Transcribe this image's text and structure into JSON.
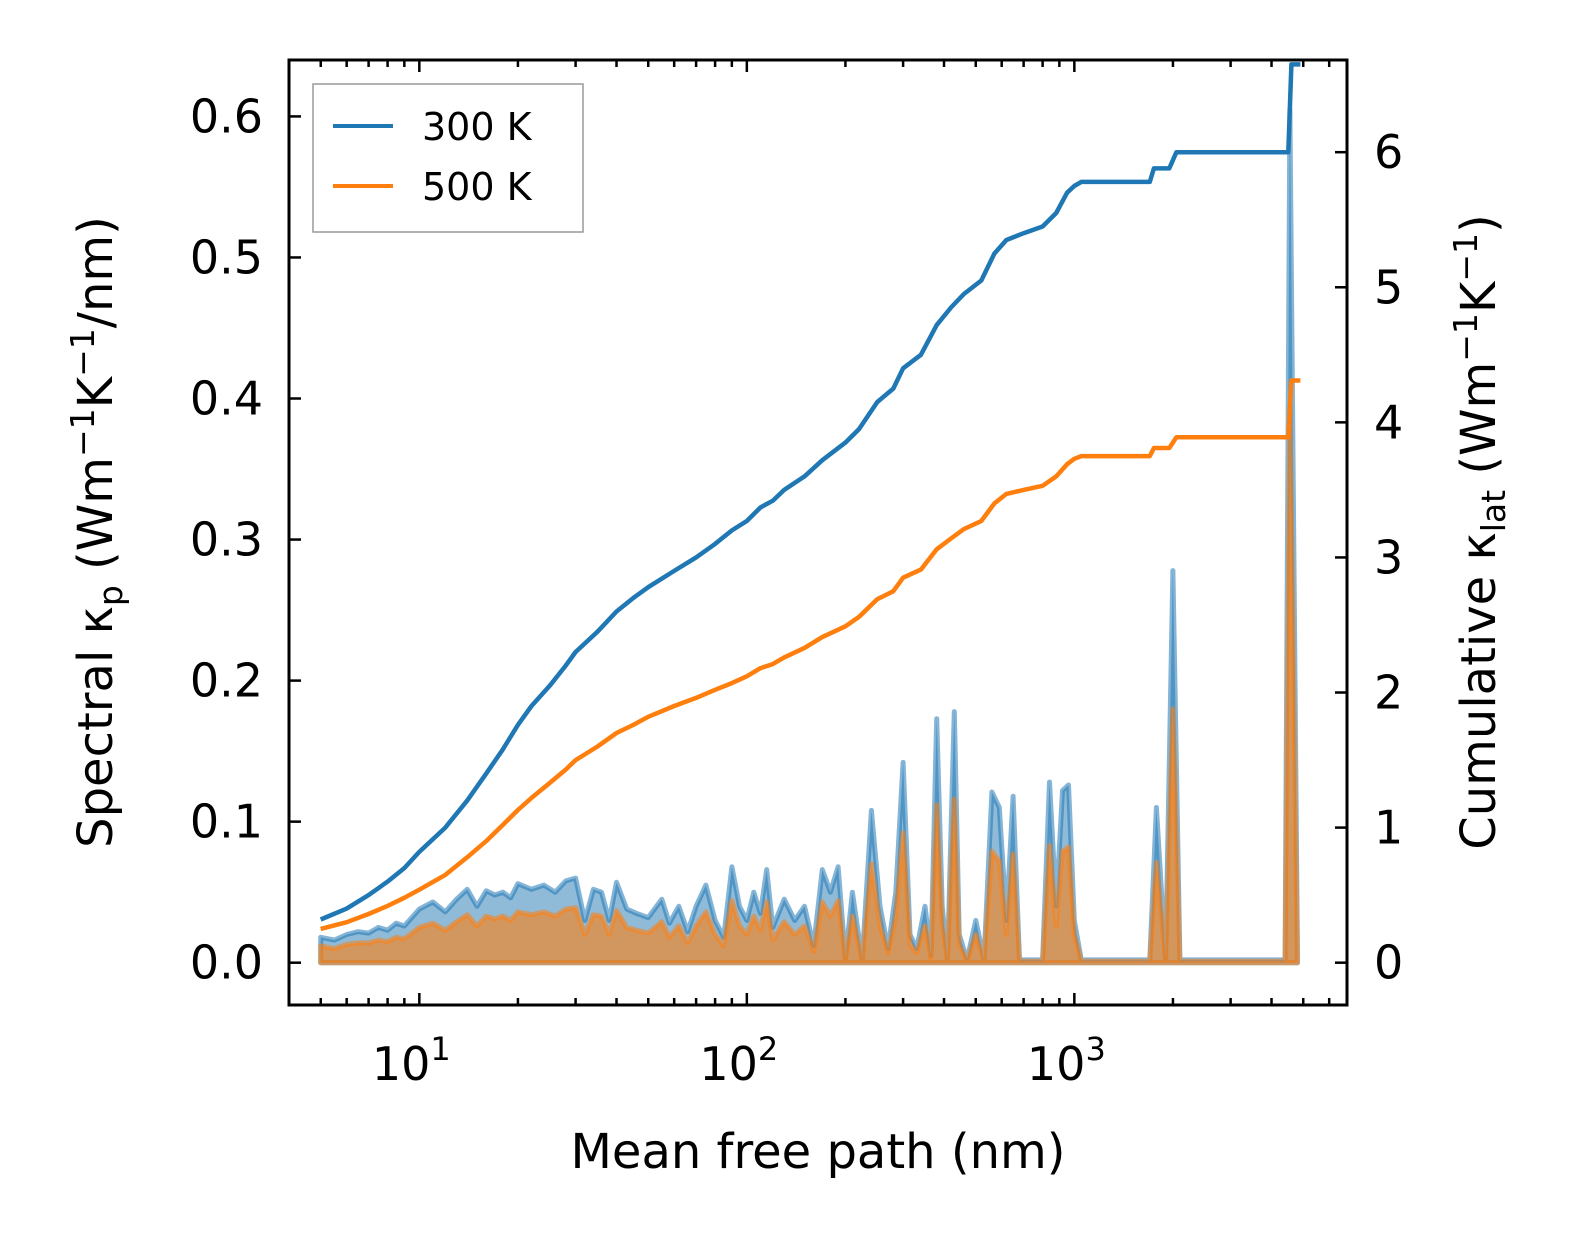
{
  "chart_data": {
    "type": "line",
    "xscale": "log",
    "xlabel": "Mean free path (nm)",
    "ylabel_left_parts": {
      "prefix": "Spectral κ",
      "sub": "p",
      "mid": " (Wm",
      "sup1": "−1",
      "k": "K",
      "sup2": "−1",
      "suffix": "/nm)"
    },
    "ylabel_right_parts": {
      "prefix": "Cumulative κ",
      "sub": "lat",
      "mid": " (Wm",
      "sup1": "−1",
      "k": "K",
      "sup2": "−1",
      "suffix": ")"
    },
    "xlim": [
      4.0,
      6800
    ],
    "ylim_left": [
      -0.03,
      0.64
    ],
    "ylim_right": [
      -0.3133,
      6.6825
    ],
    "x_major_ticks": [
      {
        "value": 10,
        "base": "10",
        "exp": "1"
      },
      {
        "value": 100,
        "base": "10",
        "exp": "2"
      },
      {
        "value": 1000,
        "base": "10",
        "exp": "3"
      }
    ],
    "y_left_ticks": [
      {
        "value": 0.0,
        "label": "0.0"
      },
      {
        "value": 0.1,
        "label": "0.1"
      },
      {
        "value": 0.2,
        "label": "0.2"
      },
      {
        "value": 0.3,
        "label": "0.3"
      },
      {
        "value": 0.4,
        "label": "0.4"
      },
      {
        "value": 0.5,
        "label": "0.5"
      },
      {
        "value": 0.6,
        "label": "0.6"
      }
    ],
    "y_right_ticks": [
      {
        "value": 0,
        "label": "0"
      },
      {
        "value": 1,
        "label": "1"
      },
      {
        "value": 2,
        "label": "2"
      },
      {
        "value": 3,
        "label": "3"
      },
      {
        "value": 4,
        "label": "4"
      },
      {
        "value": 5,
        "label": "5"
      },
      {
        "value": 6,
        "label": "6"
      }
    ],
    "legend": {
      "placement": "top-left"
    },
    "series": [
      {
        "name": "300 K",
        "color": "#1f77b4",
        "cumulative": [
          [
            5,
            0.32
          ],
          [
            6,
            0.4
          ],
          [
            7,
            0.5
          ],
          [
            8,
            0.6
          ],
          [
            9,
            0.7
          ],
          [
            10,
            0.82
          ],
          [
            12,
            1.0
          ],
          [
            14,
            1.2
          ],
          [
            16,
            1.4
          ],
          [
            18,
            1.58
          ],
          [
            20,
            1.76
          ],
          [
            22,
            1.9
          ],
          [
            25,
            2.05
          ],
          [
            28,
            2.2
          ],
          [
            30,
            2.3
          ],
          [
            35,
            2.45
          ],
          [
            40,
            2.6
          ],
          [
            45,
            2.7
          ],
          [
            50,
            2.78
          ],
          [
            60,
            2.9
          ],
          [
            70,
            3.0
          ],
          [
            80,
            3.1
          ],
          [
            90,
            3.2
          ],
          [
            100,
            3.27
          ],
          [
            110,
            3.37
          ],
          [
            120,
            3.42
          ],
          [
            130,
            3.5
          ],
          [
            150,
            3.6
          ],
          [
            170,
            3.72
          ],
          [
            200,
            3.85
          ],
          [
            220,
            3.95
          ],
          [
            250,
            4.15
          ],
          [
            280,
            4.25
          ],
          [
            300,
            4.4
          ],
          [
            340,
            4.5
          ],
          [
            380,
            4.72
          ],
          [
            420,
            4.85
          ],
          [
            460,
            4.95
          ],
          [
            520,
            5.05
          ],
          [
            570,
            5.25
          ],
          [
            620,
            5.35
          ],
          [
            700,
            5.4
          ],
          [
            800,
            5.45
          ],
          [
            880,
            5.55
          ],
          [
            950,
            5.7
          ],
          [
            1000,
            5.75
          ],
          [
            1050,
            5.78
          ],
          [
            1700,
            5.78
          ],
          [
            1750,
            5.88
          ],
          [
            1950,
            5.88
          ],
          [
            2050,
            6.0
          ],
          [
            4500,
            6.0
          ],
          [
            4600,
            6.65
          ],
          [
            4900,
            6.65
          ]
        ],
        "spectral": [
          [
            5,
            0.018
          ],
          [
            5.5,
            0.016
          ],
          [
            6,
            0.02
          ],
          [
            6.5,
            0.022
          ],
          [
            7,
            0.021
          ],
          [
            7.5,
            0.025
          ],
          [
            8,
            0.023
          ],
          [
            8.5,
            0.028
          ],
          [
            9,
            0.026
          ],
          [
            10,
            0.038
          ],
          [
            11,
            0.043
          ],
          [
            12,
            0.036
          ],
          [
            13,
            0.045
          ],
          [
            14,
            0.052
          ],
          [
            15,
            0.04
          ],
          [
            16,
            0.051
          ],
          [
            17,
            0.048
          ],
          [
            18,
            0.05
          ],
          [
            19,
            0.046
          ],
          [
            20,
            0.056
          ],
          [
            22,
            0.052
          ],
          [
            24,
            0.055
          ],
          [
            26,
            0.05
          ],
          [
            28,
            0.058
          ],
          [
            30,
            0.06
          ],
          [
            32,
            0.03
          ],
          [
            34,
            0.052
          ],
          [
            36,
            0.05
          ],
          [
            38,
            0.03
          ],
          [
            40,
            0.057
          ],
          [
            43,
            0.038
          ],
          [
            46,
            0.035
          ],
          [
            50,
            0.032
          ],
          [
            55,
            0.045
          ],
          [
            58,
            0.028
          ],
          [
            62,
            0.04
          ],
          [
            66,
            0.022
          ],
          [
            70,
            0.04
          ],
          [
            75,
            0.055
          ],
          [
            80,
            0.03
          ],
          [
            85,
            0.018
          ],
          [
            90,
            0.068
          ],
          [
            95,
            0.04
          ],
          [
            100,
            0.03
          ],
          [
            105,
            0.05
          ],
          [
            110,
            0.035
          ],
          [
            115,
            0.066
          ],
          [
            120,
            0.025
          ],
          [
            130,
            0.045
          ],
          [
            140,
            0.03
          ],
          [
            150,
            0.04
          ],
          [
            160,
            0.012
          ],
          [
            170,
            0.066
          ],
          [
            180,
            0.05
          ],
          [
            190,
            0.068
          ],
          [
            200,
            0.003
          ],
          [
            210,
            0.05
          ],
          [
            225,
            0.002
          ],
          [
            240,
            0.108
          ],
          [
            255,
            0.04
          ],
          [
            270,
            0.01
          ],
          [
            285,
            0.05
          ],
          [
            300,
            0.142
          ],
          [
            315,
            0.02
          ],
          [
            330,
            0.01
          ],
          [
            350,
            0.04
          ],
          [
            365,
            0.005
          ],
          [
            380,
            0.173
          ],
          [
            395,
            0.04
          ],
          [
            410,
            0.002
          ],
          [
            430,
            0.178
          ],
          [
            445,
            0.02
          ],
          [
            470,
            0.002
          ],
          [
            500,
            0.03
          ],
          [
            530,
            0.002
          ],
          [
            560,
            0.121
          ],
          [
            590,
            0.11
          ],
          [
            620,
            0.03
          ],
          [
            650,
            0.118
          ],
          [
            680,
            0.002
          ],
          [
            720,
            0.002
          ],
          [
            760,
            0.002
          ],
          [
            800,
            0.002
          ],
          [
            840,
            0.128
          ],
          [
            880,
            0.04
          ],
          [
            920,
            0.122
          ],
          [
            960,
            0.126
          ],
          [
            1000,
            0.03
          ],
          [
            1050,
            0.002
          ],
          [
            1700,
            0.002
          ],
          [
            1780,
            0.11
          ],
          [
            1900,
            0.002
          ],
          [
            2000,
            0.278
          ],
          [
            2100,
            0.002
          ],
          [
            4400,
            0.002
          ],
          [
            4550,
            0.605
          ],
          [
            4800,
            0.002
          ]
        ]
      },
      {
        "name": "500 K",
        "color": "#ff7f0e",
        "cumulative": [
          [
            5,
            0.25
          ],
          [
            6,
            0.3
          ],
          [
            7,
            0.36
          ],
          [
            8,
            0.42
          ],
          [
            9,
            0.48
          ],
          [
            10,
            0.54
          ],
          [
            12,
            0.65
          ],
          [
            14,
            0.78
          ],
          [
            16,
            0.9
          ],
          [
            18,
            1.02
          ],
          [
            20,
            1.13
          ],
          [
            22,
            1.22
          ],
          [
            25,
            1.33
          ],
          [
            28,
            1.43
          ],
          [
            30,
            1.5
          ],
          [
            35,
            1.6
          ],
          [
            40,
            1.7
          ],
          [
            45,
            1.76
          ],
          [
            50,
            1.82
          ],
          [
            60,
            1.9
          ],
          [
            70,
            1.96
          ],
          [
            80,
            2.02
          ],
          [
            90,
            2.07
          ],
          [
            100,
            2.12
          ],
          [
            110,
            2.18
          ],
          [
            120,
            2.21
          ],
          [
            130,
            2.26
          ],
          [
            150,
            2.33
          ],
          [
            170,
            2.41
          ],
          [
            200,
            2.49
          ],
          [
            220,
            2.56
          ],
          [
            250,
            2.69
          ],
          [
            280,
            2.75
          ],
          [
            300,
            2.85
          ],
          [
            340,
            2.91
          ],
          [
            380,
            3.06
          ],
          [
            420,
            3.14
          ],
          [
            460,
            3.21
          ],
          [
            520,
            3.27
          ],
          [
            570,
            3.4
          ],
          [
            620,
            3.47
          ],
          [
            700,
            3.5
          ],
          [
            800,
            3.53
          ],
          [
            880,
            3.6
          ],
          [
            950,
            3.69
          ],
          [
            1000,
            3.73
          ],
          [
            1050,
            3.75
          ],
          [
            1700,
            3.75
          ],
          [
            1750,
            3.81
          ],
          [
            1950,
            3.81
          ],
          [
            2050,
            3.89
          ],
          [
            4500,
            3.89
          ],
          [
            4600,
            4.31
          ],
          [
            4900,
            4.31
          ]
        ],
        "spectral": [
          [
            5,
            0.012
          ],
          [
            5.5,
            0.01
          ],
          [
            6,
            0.013
          ],
          [
            6.5,
            0.014
          ],
          [
            7,
            0.014
          ],
          [
            7.5,
            0.016
          ],
          [
            8,
            0.015
          ],
          [
            8.5,
            0.018
          ],
          [
            9,
            0.017
          ],
          [
            10,
            0.025
          ],
          [
            11,
            0.028
          ],
          [
            12,
            0.023
          ],
          [
            13,
            0.029
          ],
          [
            14,
            0.034
          ],
          [
            15,
            0.026
          ],
          [
            16,
            0.033
          ],
          [
            17,
            0.031
          ],
          [
            18,
            0.033
          ],
          [
            19,
            0.03
          ],
          [
            20,
            0.036
          ],
          [
            22,
            0.034
          ],
          [
            24,
            0.036
          ],
          [
            26,
            0.033
          ],
          [
            28,
            0.038
          ],
          [
            30,
            0.039
          ],
          [
            32,
            0.02
          ],
          [
            34,
            0.034
          ],
          [
            36,
            0.033
          ],
          [
            38,
            0.02
          ],
          [
            40,
            0.037
          ],
          [
            43,
            0.025
          ],
          [
            46,
            0.023
          ],
          [
            50,
            0.021
          ],
          [
            55,
            0.029
          ],
          [
            58,
            0.018
          ],
          [
            62,
            0.026
          ],
          [
            66,
            0.014
          ],
          [
            70,
            0.026
          ],
          [
            75,
            0.036
          ],
          [
            80,
            0.02
          ],
          [
            85,
            0.012
          ],
          [
            90,
            0.044
          ],
          [
            95,
            0.026
          ],
          [
            100,
            0.02
          ],
          [
            105,
            0.033
          ],
          [
            110,
            0.023
          ],
          [
            115,
            0.043
          ],
          [
            120,
            0.016
          ],
          [
            130,
            0.029
          ],
          [
            140,
            0.02
          ],
          [
            150,
            0.026
          ],
          [
            160,
            0.008
          ],
          [
            170,
            0.043
          ],
          [
            180,
            0.033
          ],
          [
            190,
            0.044
          ],
          [
            200,
            0.002
          ],
          [
            210,
            0.033
          ],
          [
            225,
            0.001
          ],
          [
            240,
            0.07
          ],
          [
            255,
            0.026
          ],
          [
            270,
            0.007
          ],
          [
            285,
            0.033
          ],
          [
            300,
            0.092
          ],
          [
            315,
            0.013
          ],
          [
            330,
            0.007
          ],
          [
            350,
            0.026
          ],
          [
            365,
            0.003
          ],
          [
            380,
            0.112
          ],
          [
            395,
            0.026
          ],
          [
            410,
            0.001
          ],
          [
            430,
            0.116
          ],
          [
            445,
            0.013
          ],
          [
            470,
            0.001
          ],
          [
            500,
            0.02
          ],
          [
            530,
            0.001
          ],
          [
            560,
            0.079
          ],
          [
            590,
            0.072
          ],
          [
            620,
            0.02
          ],
          [
            650,
            0.077
          ],
          [
            680,
            0.001
          ],
          [
            720,
            0.001
          ],
          [
            760,
            0.001
          ],
          [
            800,
            0.001
          ],
          [
            840,
            0.083
          ],
          [
            880,
            0.026
          ],
          [
            920,
            0.079
          ],
          [
            960,
            0.082
          ],
          [
            1000,
            0.02
          ],
          [
            1050,
            0.001
          ],
          [
            1700,
            0.001
          ],
          [
            1780,
            0.071
          ],
          [
            1900,
            0.001
          ],
          [
            2000,
            0.18
          ],
          [
            2100,
            0.001
          ],
          [
            4400,
            0.001
          ],
          [
            4550,
            0.393
          ],
          [
            4800,
            0.001
          ]
        ]
      }
    ]
  }
}
